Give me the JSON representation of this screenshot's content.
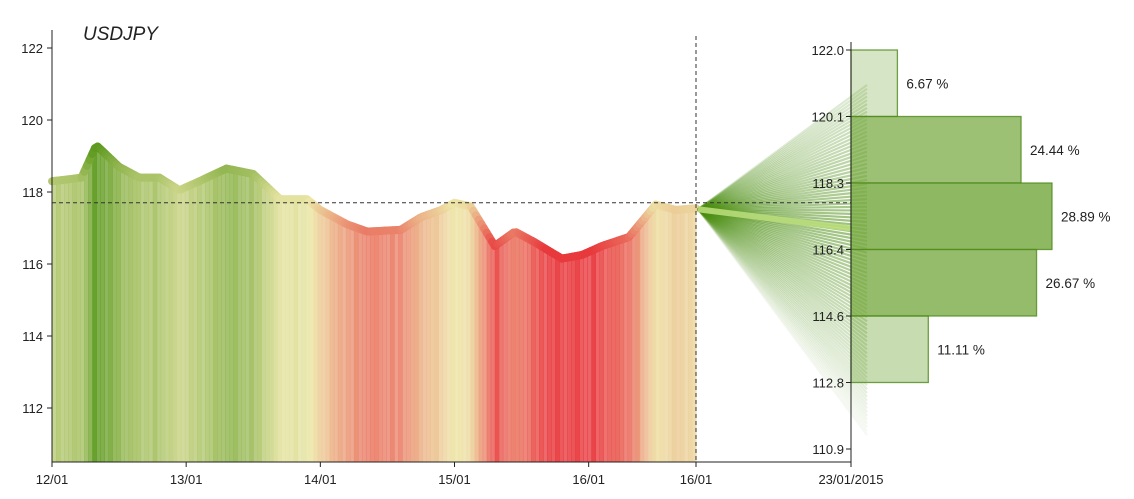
{
  "chart_data": {
    "type": "line",
    "title": "USDJPY",
    "history": {
      "x_tick_labels": [
        "12/01",
        "13/01",
        "14/01",
        "15/01",
        "16/01",
        "16/01"
      ],
      "y_ticks": [
        112,
        114,
        116,
        118,
        120,
        122
      ],
      "ylim": [
        110.5,
        122.5
      ],
      "reference_level": 117.7,
      "series": [
        {
          "t": 0.0,
          "y": 118.3
        },
        {
          "t": 0.12,
          "y": 118.35
        },
        {
          "t": 0.22,
          "y": 118.4
        },
        {
          "t": 0.33,
          "y": 119.3
        },
        {
          "t": 0.5,
          "y": 118.7
        },
        {
          "t": 0.65,
          "y": 118.4
        },
        {
          "t": 0.8,
          "y": 118.4
        },
        {
          "t": 0.95,
          "y": 118.05
        },
        {
          "t": 1.1,
          "y": 118.3
        },
        {
          "t": 1.3,
          "y": 118.65
        },
        {
          "t": 1.5,
          "y": 118.5
        },
        {
          "t": 1.7,
          "y": 117.8
        },
        {
          "t": 1.9,
          "y": 117.8
        },
        {
          "t": 2.0,
          "y": 117.5
        },
        {
          "t": 2.2,
          "y": 117.1
        },
        {
          "t": 2.35,
          "y": 116.9
        },
        {
          "t": 2.6,
          "y": 116.95
        },
        {
          "t": 2.75,
          "y": 117.3
        },
        {
          "t": 2.9,
          "y": 117.5
        },
        {
          "t": 3.0,
          "y": 117.7
        },
        {
          "t": 3.12,
          "y": 117.6
        },
        {
          "t": 3.3,
          "y": 116.5
        },
        {
          "t": 3.45,
          "y": 116.9
        },
        {
          "t": 3.6,
          "y": 116.6
        },
        {
          "t": 3.8,
          "y": 116.15
        },
        {
          "t": 3.95,
          "y": 116.25
        },
        {
          "t": 4.1,
          "y": 116.5
        },
        {
          "t": 4.3,
          "y": 116.75
        },
        {
          "t": 4.5,
          "y": 117.65
        },
        {
          "t": 4.65,
          "y": 117.5
        },
        {
          "t": 4.8,
          "y": 117.55
        }
      ]
    },
    "forecast": {
      "x_tick_labels": [
        "16/01",
        "23/01/2015"
      ],
      "bin_edges": [
        122.0,
        120.1,
        118.3,
        116.4,
        114.6,
        112.8,
        110.9
      ],
      "bins": [
        {
          "low": 120.1,
          "high": 122.0,
          "percent": 6.67,
          "label": "6.67 %"
        },
        {
          "low": 118.3,
          "high": 120.1,
          "percent": 24.44,
          "label": "24.44 %"
        },
        {
          "low": 116.4,
          "high": 118.3,
          "percent": 28.89,
          "label": "28.89 %"
        },
        {
          "low": 114.6,
          "high": 116.4,
          "percent": 26.67,
          "label": "26.67 %"
        },
        {
          "low": 112.8,
          "high": 114.6,
          "percent": 11.11,
          "label": "11.11 %"
        },
        {
          "low": 110.9,
          "high": 112.8,
          "percent": 0,
          "label": ""
        }
      ],
      "start_value": 117.55,
      "median_value": 117.0
    },
    "colors": {
      "up": "#5e9a1f",
      "neutral": "#ede7a8",
      "down": "#e8393d",
      "fan": "#4d8f14",
      "bar_fill": "#7aab45",
      "bar_stroke": "#4f8a1c"
    }
  }
}
